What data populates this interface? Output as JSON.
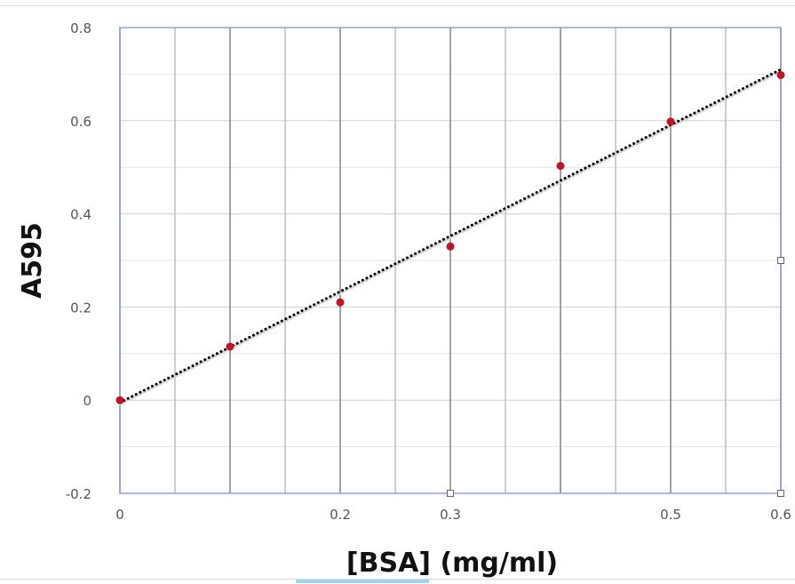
{
  "chart_data": {
    "type": "scatter",
    "title": "",
    "xlabel": "[BSA] (mg/ml)",
    "ylabel": "A595",
    "xlim": [
      0,
      0.6
    ],
    "ylim": [
      -0.2,
      0.8
    ],
    "x_ticks": [
      "0",
      "0.1",
      "0.2",
      "0.3",
      "0.4",
      "0.5",
      "0.6"
    ],
    "x_tick_labels": [
      "0",
      "",
      "0.2",
      "0.3",
      "",
      "0.5",
      "0.6"
    ],
    "y_ticks": [
      "0.8",
      "0.6",
      "0.4",
      "0.2",
      "0",
      "-0.2"
    ],
    "grid": true,
    "legend": "none",
    "series": [
      {
        "color": "#c0142a",
        "x": [
          0,
          0.1,
          0.2,
          0.3,
          0.4,
          0.5,
          0.6
        ],
        "y": [
          0.0,
          0.115,
          0.21,
          0.33,
          0.503,
          0.598,
          0.698
        ]
      }
    ],
    "trendline": {
      "style": "dotted",
      "color": "#000000",
      "x": [
        0,
        0.6
      ],
      "y": [
        -0.005,
        0.71
      ]
    }
  }
}
